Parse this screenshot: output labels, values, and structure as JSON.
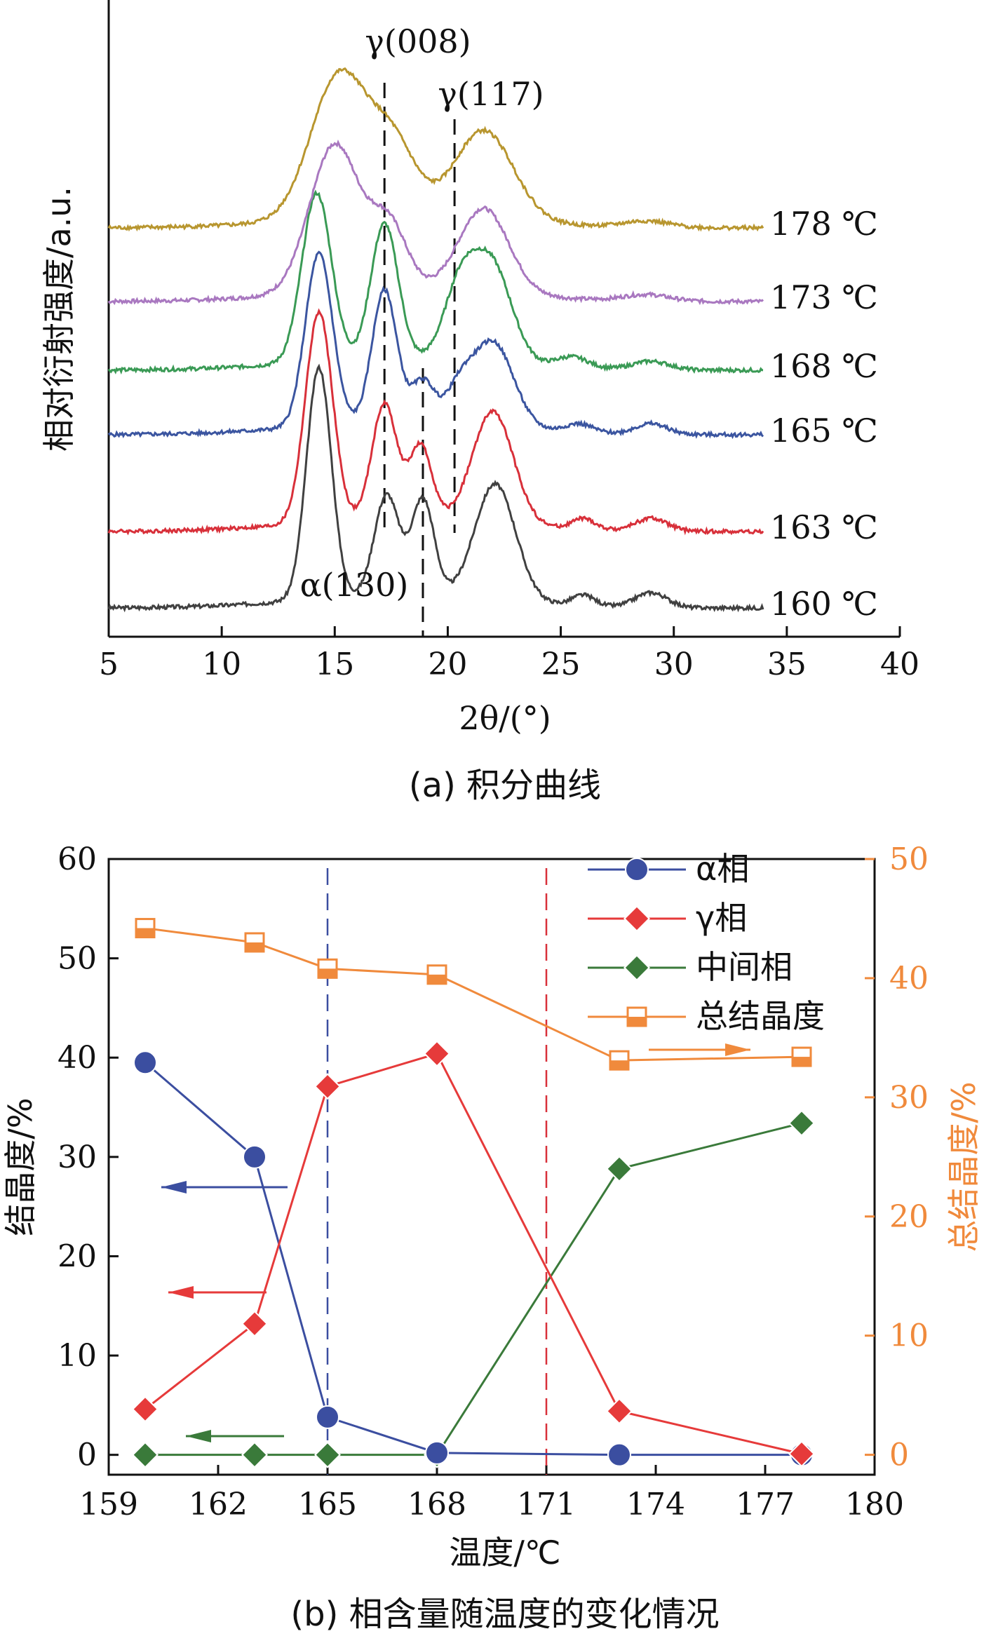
{
  "chart_data": [
    {
      "type": "line",
      "caption": "(a) 积分曲线",
      "xlabel": "2θ/(°)",
      "ylabel": "相对衍射强度/a.u.",
      "xlim": [
        5,
        40
      ],
      "xticks": [
        5,
        10,
        15,
        20,
        25,
        30,
        35,
        40
      ],
      "peak_labels": [
        {
          "text": "γ(008)",
          "x": 17.2
        },
        {
          "text": "γ(117)",
          "x": 20.3
        },
        {
          "text": "α(130)",
          "x": 18.9
        }
      ],
      "series": [
        {
          "name": "160 ℃",
          "label": "160 ℃",
          "color": "#404040",
          "peaks": [
            [
              14.3,
              11,
              0.55
            ],
            [
              17.3,
              4.8,
              0.55
            ],
            [
              18.9,
              4.6,
              0.5
            ],
            [
              22.1,
              5.5,
              0.9
            ],
            [
              26.0,
              0.5,
              0.5
            ],
            [
              29.0,
              0.7,
              0.7
            ]
          ]
        },
        {
          "name": "163 ℃",
          "label": "163 ℃",
          "color": "#d8303a",
          "peaks": [
            [
              14.3,
              10,
              0.6
            ],
            [
              17.2,
              5.5,
              0.55
            ],
            [
              18.8,
              3.5,
              0.5
            ],
            [
              22.0,
              5.3,
              0.9
            ],
            [
              26.0,
              0.5,
              0.5
            ],
            [
              29.0,
              0.6,
              0.7
            ]
          ]
        },
        {
          "name": "165 ℃",
          "label": "165 ℃",
          "color": "#3b55a0",
          "peaks": [
            [
              14.3,
              8.2,
              0.6
            ],
            [
              17.2,
              6.3,
              0.55
            ],
            [
              18.9,
              2.0,
              0.5
            ],
            [
              20.5,
              1.5,
              0.6
            ],
            [
              22.0,
              4.0,
              0.9
            ],
            [
              25.8,
              0.4,
              0.6
            ],
            [
              29.0,
              0.5,
              0.7
            ]
          ]
        },
        {
          "name": "168 ℃",
          "label": "168 ℃",
          "color": "#3a9a55",
          "peaks": [
            [
              14.2,
              8.0,
              0.65
            ],
            [
              17.2,
              6.4,
              0.6
            ],
            [
              20.5,
              3.0,
              0.7
            ],
            [
              21.9,
              4.7,
              0.9
            ],
            [
              25.5,
              0.5,
              0.7
            ],
            [
              29.0,
              0.4,
              0.8
            ]
          ]
        },
        {
          "name": "173 ℃",
          "label": "173 ℃",
          "color": "#a978c0",
          "peaks": [
            [
              15.0,
              7.0,
              1.1
            ],
            [
              17.4,
              3.0,
              0.8
            ],
            [
              21.6,
              4.0,
              1.1
            ],
            [
              28.8,
              0.3,
              1.0
            ]
          ]
        },
        {
          "name": "178 ℃",
          "label": "178 ℃",
          "color": "#b8962f",
          "peaks": [
            [
              15.2,
              6.8,
              1.25
            ],
            [
              17.6,
              3.2,
              1.0
            ],
            [
              21.6,
              4.2,
              1.3
            ],
            [
              28.8,
              0.3,
              1.0
            ]
          ]
        }
      ]
    },
    {
      "type": "line",
      "caption": "(b) 相含量随温度的变化情况",
      "xlabel": "温度/℃",
      "ylabel": "结晶度/%",
      "ylabel_right": "总结晶度/%",
      "xlim": [
        159,
        180
      ],
      "ylim": [
        -2,
        60
      ],
      "ylim_right": [
        -1.67,
        50
      ],
      "xticks": [
        159,
        162,
        165,
        168,
        171,
        174,
        177,
        180
      ],
      "yticks": [
        0,
        10,
        20,
        30,
        40,
        50,
        60
      ],
      "yticks_right": [
        0,
        10,
        20,
        30,
        40,
        50
      ],
      "vlines": [
        {
          "x": 165,
          "color": "#3b4ea0"
        },
        {
          "x": 171,
          "color": "#d8303a"
        }
      ],
      "legend_position": "top-right",
      "series": [
        {
          "name": "α相",
          "color": "#3b4ea0",
          "marker": "circle",
          "axis": "left",
          "x": [
            160,
            163,
            165,
            168,
            173,
            178
          ],
          "y": [
            39.5,
            30.0,
            3.8,
            0.2,
            0.0,
            0.0
          ]
        },
        {
          "name": "γ相",
          "color": "#e63a3a",
          "marker": "diamond",
          "axis": "left",
          "x": [
            160,
            163,
            165,
            168,
            173,
            178
          ],
          "y": [
            4.6,
            13.2,
            37.1,
            40.4,
            4.4,
            0.1
          ]
        },
        {
          "name": "中间相",
          "color": "#3a7a3a",
          "marker": "diamond",
          "axis": "left",
          "x": [
            160,
            163,
            165,
            168,
            173,
            178
          ],
          "y": [
            0.0,
            0.0,
            0.0,
            0.0,
            28.8,
            33.4
          ]
        },
        {
          "name": "总结晶度",
          "color": "#f08a3c",
          "marker": "square",
          "axis": "right",
          "x": [
            160,
            163,
            165,
            168,
            173,
            178
          ],
          "y": [
            44.2,
            43.0,
            40.8,
            40.3,
            33.1,
            33.4
          ]
        }
      ]
    }
  ]
}
